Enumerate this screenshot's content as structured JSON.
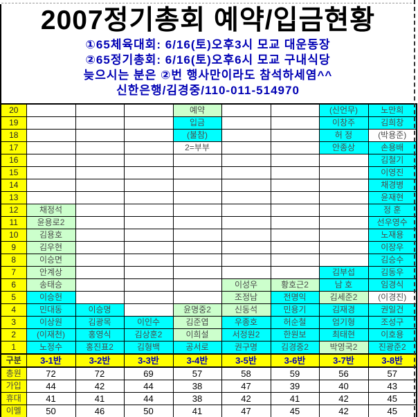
{
  "header": {
    "title": "2007정기총회  예약/입금현황",
    "line1": "①65체육대회:  6/16(토)오후3시  모교  대운동장",
    "line2": "②65정기총회:  6/16(토)오후6시  모교  구내식당",
    "line3": "늦으시는  분은  ②번  행사만이라도  참석하세염^^",
    "line4": "신한은행/김경중/110-011-514970"
  },
  "colors": {
    "cell_cyan": "#00ffff",
    "cell_green": "#ccffcc",
    "header_yellow": "#ffff00",
    "info_blue": "#0000b4",
    "name_gray": "#4a4a4a"
  },
  "legend": {
    "reserved": "예약",
    "paid": "입금",
    "absent": "(불참)",
    "couple_note": "2=부부"
  },
  "table": {
    "kubun_label": "구분",
    "class_headers": [
      "3-1반",
      "3-2반",
      "3-3반",
      "3-4반",
      "3-5반",
      "3-6반",
      "3-7반",
      "3-8반"
    ],
    "rows": [
      {
        "num": "20",
        "cells": [
          {
            "t": "",
            "bg": "w"
          },
          {
            "t": "",
            "bg": "w"
          },
          {
            "t": "",
            "bg": "w"
          },
          {
            "t": "예약",
            "bg": "g"
          },
          {
            "t": "",
            "bg": "w"
          },
          {
            "t": "",
            "bg": "w"
          },
          {
            "t": "(신언무)",
            "bg": "c"
          },
          {
            "t": "노만희",
            "bg": "c"
          }
        ]
      },
      {
        "num": "19",
        "cells": [
          {
            "t": "",
            "bg": "w"
          },
          {
            "t": "",
            "bg": "w"
          },
          {
            "t": "",
            "bg": "w"
          },
          {
            "t": "입금",
            "bg": "c"
          },
          {
            "t": "",
            "bg": "w"
          },
          {
            "t": "",
            "bg": "w"
          },
          {
            "t": "이창주",
            "bg": "c"
          },
          {
            "t": "김희창",
            "bg": "c"
          }
        ]
      },
      {
        "num": "18",
        "cells": [
          {
            "t": "",
            "bg": "w"
          },
          {
            "t": "",
            "bg": "w"
          },
          {
            "t": "",
            "bg": "w"
          },
          {
            "t": "(불참)",
            "bg": "c"
          },
          {
            "t": "",
            "bg": "w"
          },
          {
            "t": "",
            "bg": "w"
          },
          {
            "t": "허  정",
            "bg": "c"
          },
          {
            "t": "(박용준)",
            "bg": "w"
          }
        ]
      },
      {
        "num": "17",
        "cells": [
          {
            "t": "",
            "bg": "w"
          },
          {
            "t": "",
            "bg": "w"
          },
          {
            "t": "",
            "bg": "w"
          },
          {
            "t": "2=부부",
            "bg": "w"
          },
          {
            "t": "",
            "bg": "w"
          },
          {
            "t": "",
            "bg": "w"
          },
          {
            "t": "안종상",
            "bg": "c"
          },
          {
            "t": "손용배",
            "bg": "c"
          }
        ]
      },
      {
        "num": "16",
        "cells": [
          {
            "t": "",
            "bg": "w"
          },
          {
            "t": "",
            "bg": "w"
          },
          {
            "t": "",
            "bg": "w"
          },
          {
            "t": "",
            "bg": "w"
          },
          {
            "t": "",
            "bg": "w"
          },
          {
            "t": "",
            "bg": "w"
          },
          {
            "t": "",
            "bg": "w"
          },
          {
            "t": "김철기",
            "bg": "c"
          }
        ]
      },
      {
        "num": "15",
        "cells": [
          {
            "t": "",
            "bg": "w"
          },
          {
            "t": "",
            "bg": "w"
          },
          {
            "t": "",
            "bg": "w"
          },
          {
            "t": "",
            "bg": "w"
          },
          {
            "t": "",
            "bg": "w"
          },
          {
            "t": "",
            "bg": "w"
          },
          {
            "t": "",
            "bg": "w"
          },
          {
            "t": "이영진",
            "bg": "c"
          }
        ]
      },
      {
        "num": "14",
        "cells": [
          {
            "t": "",
            "bg": "w"
          },
          {
            "t": "",
            "bg": "w"
          },
          {
            "t": "",
            "bg": "w"
          },
          {
            "t": "",
            "bg": "w"
          },
          {
            "t": "",
            "bg": "w"
          },
          {
            "t": "",
            "bg": "w"
          },
          {
            "t": "",
            "bg": "w"
          },
          {
            "t": "채경병",
            "bg": "c"
          }
        ]
      },
      {
        "num": "13",
        "cells": [
          {
            "t": "",
            "bg": "w"
          },
          {
            "t": "",
            "bg": "w"
          },
          {
            "t": "",
            "bg": "w"
          },
          {
            "t": "",
            "bg": "w"
          },
          {
            "t": "",
            "bg": "w"
          },
          {
            "t": "",
            "bg": "w"
          },
          {
            "t": "",
            "bg": "w"
          },
          {
            "t": "윤재현",
            "bg": "c"
          }
        ]
      },
      {
        "num": "12",
        "cells": [
          {
            "t": "채정석",
            "bg": "g"
          },
          {
            "t": "",
            "bg": "w"
          },
          {
            "t": "",
            "bg": "w"
          },
          {
            "t": "",
            "bg": "w"
          },
          {
            "t": "",
            "bg": "w"
          },
          {
            "t": "",
            "bg": "w"
          },
          {
            "t": "",
            "bg": "w"
          },
          {
            "t": "정  훈",
            "bg": "c"
          }
        ]
      },
      {
        "num": "11",
        "cells": [
          {
            "t": "윤용로2",
            "bg": "g"
          },
          {
            "t": "",
            "bg": "w"
          },
          {
            "t": "",
            "bg": "w"
          },
          {
            "t": "",
            "bg": "w"
          },
          {
            "t": "",
            "bg": "w"
          },
          {
            "t": "",
            "bg": "w"
          },
          {
            "t": "",
            "bg": "w"
          },
          {
            "t": "선우영수",
            "bg": "c"
          }
        ]
      },
      {
        "num": "10",
        "cells": [
          {
            "t": "김용호",
            "bg": "g"
          },
          {
            "t": "",
            "bg": "w"
          },
          {
            "t": "",
            "bg": "w"
          },
          {
            "t": "",
            "bg": "w"
          },
          {
            "t": "",
            "bg": "w"
          },
          {
            "t": "",
            "bg": "w"
          },
          {
            "t": "",
            "bg": "w"
          },
          {
            "t": "노재용",
            "bg": "c"
          }
        ]
      },
      {
        "num": "9",
        "cells": [
          {
            "t": "김우현",
            "bg": "g"
          },
          {
            "t": "",
            "bg": "w"
          },
          {
            "t": "",
            "bg": "w"
          },
          {
            "t": "",
            "bg": "w"
          },
          {
            "t": "",
            "bg": "w"
          },
          {
            "t": "",
            "bg": "w"
          },
          {
            "t": "",
            "bg": "w"
          },
          {
            "t": "이장우",
            "bg": "c"
          }
        ]
      },
      {
        "num": "8",
        "cells": [
          {
            "t": "이승면",
            "bg": "g"
          },
          {
            "t": "",
            "bg": "w"
          },
          {
            "t": "",
            "bg": "w"
          },
          {
            "t": "",
            "bg": "w"
          },
          {
            "t": "",
            "bg": "w"
          },
          {
            "t": "",
            "bg": "w"
          },
          {
            "t": "",
            "bg": "w"
          },
          {
            "t": "김승수",
            "bg": "c"
          }
        ]
      },
      {
        "num": "7",
        "cells": [
          {
            "t": "안계상",
            "bg": "g"
          },
          {
            "t": "",
            "bg": "w"
          },
          {
            "t": "",
            "bg": "w"
          },
          {
            "t": "",
            "bg": "w"
          },
          {
            "t": "",
            "bg": "w"
          },
          {
            "t": "",
            "bg": "w"
          },
          {
            "t": "김부섭",
            "bg": "c"
          },
          {
            "t": "김동우",
            "bg": "c"
          }
        ]
      },
      {
        "num": "6",
        "cells": [
          {
            "t": "송태승",
            "bg": "g"
          },
          {
            "t": "",
            "bg": "w"
          },
          {
            "t": "",
            "bg": "w"
          },
          {
            "t": "",
            "bg": "w"
          },
          {
            "t": "이성우",
            "bg": "g"
          },
          {
            "t": "황호근2",
            "bg": "g"
          },
          {
            "t": "남  호",
            "bg": "c"
          },
          {
            "t": "임경식",
            "bg": "c"
          }
        ]
      },
      {
        "num": "5",
        "cells": [
          {
            "t": "이승헌",
            "bg": "c"
          },
          {
            "t": "",
            "bg": "w"
          },
          {
            "t": "",
            "bg": "w"
          },
          {
            "t": "",
            "bg": "w"
          },
          {
            "t": "조정남",
            "bg": "g"
          },
          {
            "t": "전명익",
            "bg": "c"
          },
          {
            "t": "김세준2",
            "bg": "g"
          },
          {
            "t": "(이경진)",
            "bg": "w"
          }
        ]
      },
      {
        "num": "4",
        "cells": [
          {
            "t": "민대동",
            "bg": "c"
          },
          {
            "t": "이승명",
            "bg": "c"
          },
          {
            "t": "",
            "bg": "w"
          },
          {
            "t": "윤명중2",
            "bg": "g"
          },
          {
            "t": "신동석",
            "bg": "g"
          },
          {
            "t": "민용기",
            "bg": "c"
          },
          {
            "t": "김재경",
            "bg": "c"
          },
          {
            "t": "권일건",
            "bg": "c"
          }
        ]
      },
      {
        "num": "3",
        "cells": [
          {
            "t": "이상원",
            "bg": "c"
          },
          {
            "t": "김광목",
            "bg": "c"
          },
          {
            "t": "이인수",
            "bg": "c"
          },
          {
            "t": "김준엽",
            "bg": "g"
          },
          {
            "t": "우종호",
            "bg": "c"
          },
          {
            "t": "허순철",
            "bg": "c"
          },
          {
            "t": "엄기형",
            "bg": "c"
          },
          {
            "t": "조성구",
            "bg": "c"
          }
        ]
      },
      {
        "num": "2",
        "cells": [
          {
            "t": "(이재천)",
            "bg": "c"
          },
          {
            "t": "홍영식",
            "bg": "c"
          },
          {
            "t": "김상훈2",
            "bg": "c"
          },
          {
            "t": "이희설",
            "bg": "g"
          },
          {
            "t": "서정원2",
            "bg": "c"
          },
          {
            "t": "한원보",
            "bg": "c"
          },
          {
            "t": "최태현",
            "bg": "c"
          },
          {
            "t": "이호용",
            "bg": "c"
          }
        ]
      },
      {
        "num": "1",
        "cells": [
          {
            "t": "노정수",
            "bg": "c"
          },
          {
            "t": "홍진표2",
            "bg": "c"
          },
          {
            "t": "김형백",
            "bg": "c"
          },
          {
            "t": "공서로",
            "bg": "c"
          },
          {
            "t": "권구명",
            "bg": "c"
          },
          {
            "t": "김경중2",
            "bg": "c"
          },
          {
            "t": "박영국2",
            "bg": "g"
          },
          {
            "t": "진광준2",
            "bg": "c"
          }
        ]
      }
    ],
    "stats": [
      {
        "label": "총원",
        "values": [
          "72",
          "72",
          "69",
          "57",
          "58",
          "59",
          "56",
          "57"
        ]
      },
      {
        "label": "가입",
        "values": [
          "44",
          "42",
          "44",
          "38",
          "47",
          "39",
          "40",
          "43"
        ]
      },
      {
        "label": "휴대",
        "values": [
          "41",
          "41",
          "44",
          "38",
          "42",
          "41",
          "42",
          "45"
        ]
      },
      {
        "label": "이멜",
        "values": [
          "50",
          "46",
          "50",
          "41",
          "47",
          "45",
          "42",
          "45"
        ]
      }
    ]
  }
}
